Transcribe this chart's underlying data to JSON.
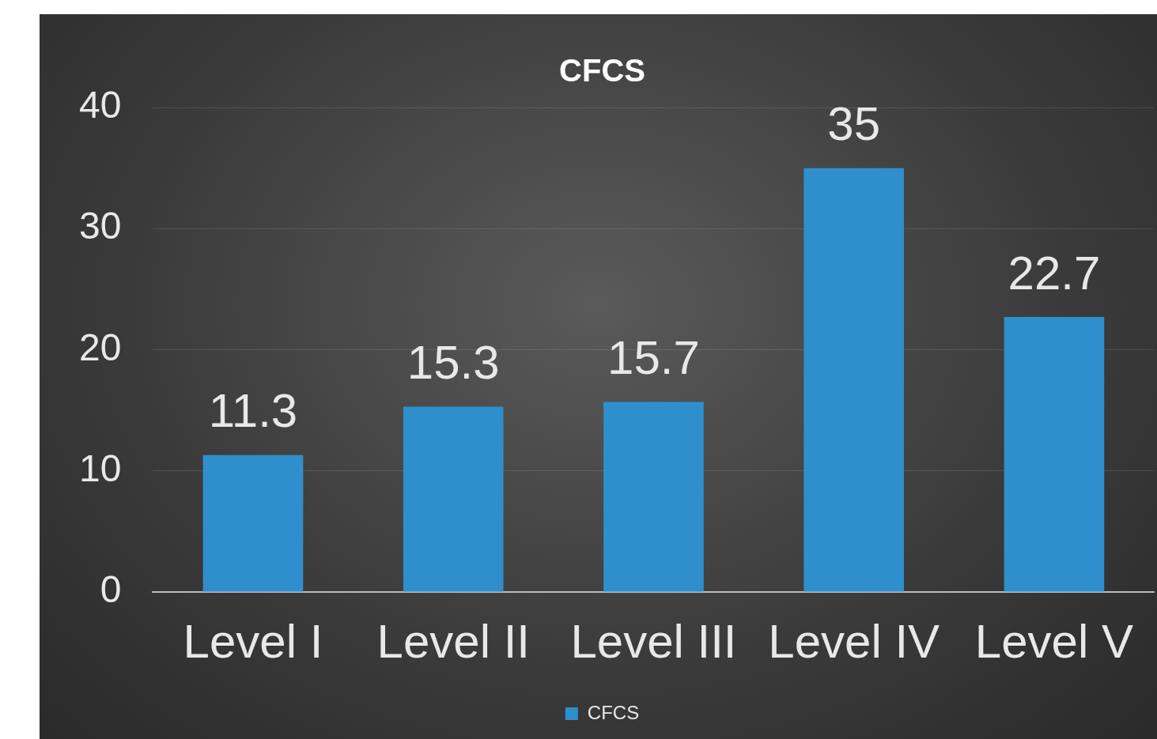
{
  "chart_data": {
    "type": "bar",
    "title": "CFCS",
    "categories": [
      "Level I",
      "Level II",
      "Level III",
      "Level IV",
      "Level V"
    ],
    "series": [
      {
        "name": "CFCS",
        "color": "#2f8fcc",
        "values": [
          11.3,
          15.3,
          15.7,
          35,
          22.7
        ]
      }
    ],
    "ylim": [
      0,
      40
    ],
    "yticks": [
      0,
      10,
      20,
      30,
      40
    ],
    "grid": "y",
    "legend": "bottom",
    "data_labels": true
  }
}
